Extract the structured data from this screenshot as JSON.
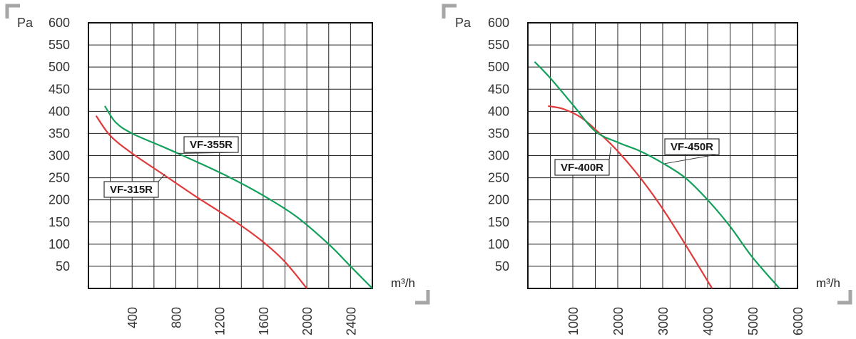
{
  "chart_data": [
    {
      "type": "line",
      "title": "",
      "ylabel": "Pa",
      "xlabel": "m³/h",
      "ylim": [
        0,
        600
      ],
      "xlim": [
        0,
        2600
      ],
      "yticks": [
        "600",
        "550",
        "500",
        "450",
        "400",
        "350",
        "300",
        "250",
        "200",
        "150",
        "100",
        "50"
      ],
      "xticks": [
        "400",
        "800",
        "1200",
        "1600",
        "2000",
        "2400"
      ],
      "grid": true,
      "series": [
        {
          "name": "VF-315R",
          "color": "#e03a3a",
          "x": [
            70,
            200,
            400,
            700,
            1000,
            1350,
            1600,
            1800,
            2000
          ],
          "y": [
            390,
            345,
            305,
            255,
            205,
            150,
            105,
            60,
            0
          ]
        },
        {
          "name": "VF-355R",
          "color": "#13a05a",
          "x": [
            150,
            250,
            400,
            700,
            1000,
            1300,
            1600,
            1900,
            2200,
            2400,
            2600
          ],
          "y": [
            412,
            375,
            350,
            318,
            285,
            250,
            210,
            163,
            100,
            50,
            0
          ]
        }
      ]
    },
    {
      "type": "line",
      "title": "",
      "ylabel": "Pa",
      "xlabel": "m³/h",
      "ylim": [
        0,
        600
      ],
      "xlim": [
        0,
        6000
      ],
      "yticks": [
        "600",
        "550",
        "500",
        "450",
        "400",
        "350",
        "300",
        "250",
        "200",
        "150",
        "100",
        "50"
      ],
      "xticks": [
        "1000",
        "2000",
        "3000",
        "4000",
        "5000",
        "6000"
      ],
      "grid": true,
      "series": [
        {
          "name": "VF-400R",
          "color": "#e03a3a",
          "x": [
            450,
            800,
            1200,
            1600,
            2000,
            2500,
            3000,
            3500,
            4100
          ],
          "y": [
            412,
            405,
            385,
            350,
            310,
            250,
            180,
            100,
            0
          ]
        },
        {
          "name": "VF-450R",
          "color": "#13a05a",
          "x": [
            150,
            500,
            1000,
            1500,
            2000,
            2500,
            3000,
            3500,
            4000,
            4500,
            5000,
            5600
          ],
          "y": [
            512,
            475,
            415,
            355,
            330,
            310,
            283,
            250,
            200,
            140,
            70,
            0
          ]
        }
      ]
    }
  ]
}
